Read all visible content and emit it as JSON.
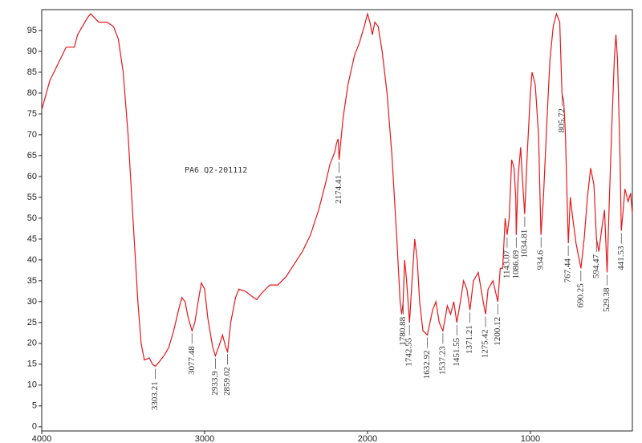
{
  "chart_data": {
    "type": "line",
    "annotation": "PA6 Q2-201112",
    "x": [
      4000,
      3950,
      3900,
      3850,
      3800,
      3780,
      3720,
      3700,
      3650,
      3600,
      3560,
      3530,
      3500,
      3470,
      3440,
      3410,
      3390,
      3370,
      3340,
      3320,
      3303,
      3280,
      3250,
      3220,
      3190,
      3160,
      3140,
      3120,
      3100,
      3077,
      3060,
      3040,
      3020,
      3000,
      2980,
      2950,
      2934,
      2915,
      2890,
      2870,
      2859,
      2840,
      2810,
      2790,
      2750,
      2700,
      2680,
      2650,
      2600,
      2550,
      2500,
      2450,
      2400,
      2350,
      2300,
      2260,
      2230,
      2200,
      2190,
      2180,
      2174,
      2165,
      2150,
      2120,
      2080,
      2050,
      2020,
      2000,
      1985,
      1970,
      1955,
      1935,
      1910,
      1880,
      1850,
      1820,
      1800,
      1790,
      1781,
      1772,
      1760,
      1742,
      1730,
      1710,
      1695,
      1680,
      1660,
      1633,
      1600,
      1580,
      1560,
      1537,
      1510,
      1490,
      1470,
      1452,
      1430,
      1410,
      1390,
      1371,
      1350,
      1320,
      1290,
      1275,
      1260,
      1230,
      1200,
      1185,
      1170,
      1155,
      1143,
      1130,
      1115,
      1100,
      1090,
      1087,
      1075,
      1060,
      1050,
      1035,
      1020,
      1000,
      990,
      970,
      950,
      935,
      920,
      900,
      880,
      860,
      840,
      820,
      806,
      795,
      785,
      775,
      767,
      755,
      740,
      720,
      700,
      690,
      670,
      650,
      630,
      610,
      594,
      580,
      560,
      545,
      529,
      515,
      500,
      485,
      475,
      465,
      450,
      442,
      430,
      420,
      400,
      385,
      374
    ],
    "series": [
      {
        "color": "#e8171b",
        "values": [
          76,
          83,
          87,
          91,
          91,
          94,
          98,
          99,
          97,
          97,
          96,
          93,
          85,
          70,
          50,
          30,
          20,
          16,
          16.5,
          15,
          14.5,
          15.5,
          17,
          19,
          23,
          28,
          31,
          30,
          26,
          23,
          25,
          30,
          34.5,
          33,
          26,
          19,
          17,
          19,
          22,
          19,
          18,
          25,
          31,
          33,
          32.5,
          31,
          30.5,
          32,
          34,
          34,
          36,
          39,
          42,
          46,
          52,
          58,
          63,
          66,
          68,
          69,
          64,
          68,
          74,
          82,
          89,
          92,
          96,
          99,
          97,
          94,
          97,
          96,
          90,
          80,
          65,
          45,
          30,
          27,
          30,
          40,
          35,
          25,
          33,
          45,
          40,
          30,
          23,
          22,
          28,
          30,
          25,
          23,
          29,
          27,
          30,
          25,
          30,
          35,
          33,
          28,
          35,
          37,
          30,
          27,
          33,
          35,
          30,
          38,
          38,
          50,
          46,
          50,
          64,
          62,
          55,
          46,
          60,
          67,
          60,
          51,
          65,
          80,
          85,
          82,
          70,
          46,
          55,
          72,
          88,
          96,
          99,
          97,
          80,
          78,
          70,
          55,
          44,
          55,
          50,
          44,
          40,
          38,
          45,
          55,
          62,
          58,
          45,
          42,
          48,
          52,
          37,
          55,
          72,
          88,
          94,
          88,
          65,
          47,
          52,
          57,
          54,
          56,
          51
        ]
      }
    ],
    "peaks": [
      {
        "x": 3303.21,
        "y": 14.5
      },
      {
        "x": 3077.48,
        "y": 23
      },
      {
        "x": 2933.9,
        "y": 17
      },
      {
        "x": 2859.02,
        "y": 18
      },
      {
        "x": 2174.41,
        "y": 64
      },
      {
        "x": 1780.88,
        "y": 30
      },
      {
        "x": 1742.55,
        "y": 25
      },
      {
        "x": 1632.92,
        "y": 22
      },
      {
        "x": 1537.23,
        "y": 23
      },
      {
        "x": 1451.55,
        "y": 25
      },
      {
        "x": 1371.21,
        "y": 28
      },
      {
        "x": 1275.42,
        "y": 27
      },
      {
        "x": 1200.12,
        "y": 30
      },
      {
        "x": 1143.07,
        "y": 46
      },
      {
        "x": 1086.69,
        "y": 46
      },
      {
        "x": 1034.81,
        "y": 51
      },
      {
        "x": 934.6,
        "y": 46
      },
      {
        "x": 805.72,
        "y": 80
      },
      {
        "x": 767.44,
        "y": 44
      },
      {
        "x": 690.25,
        "y": 38
      },
      {
        "x": 594.47,
        "y": 45
      },
      {
        "x": 529.38,
        "y": 37
      },
      {
        "x": 441.53,
        "y": 47
      }
    ],
    "xlim": [
      4000,
      374
    ],
    "xticks": [
      4000,
      3000,
      2000,
      1000
    ],
    "ylim": [
      -1,
      100
    ],
    "yticks": [
      0,
      5,
      10,
      15,
      20,
      25,
      30,
      35,
      40,
      45,
      50,
      55,
      60,
      65,
      70,
      75,
      80,
      85,
      90,
      95
    ]
  }
}
